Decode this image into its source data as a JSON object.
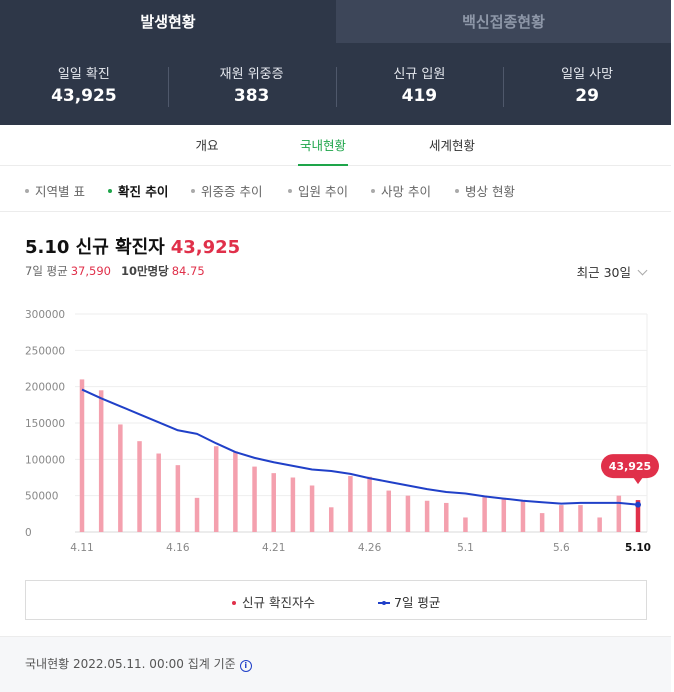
{
  "top_tabs": [
    "발생현황",
    "백신접종현황"
  ],
  "stats": [
    {
      "label": "일일 확진",
      "value": "43,925"
    },
    {
      "label": "재원 위중증",
      "value": "383"
    },
    {
      "label": "신규 입원",
      "value": "419"
    },
    {
      "label": "일일 사망",
      "value": "29"
    }
  ],
  "subtabs": [
    "개요",
    "국내현황",
    "세계현황"
  ],
  "filters": [
    "지역별 표",
    "확진 추이",
    "위중증 추이",
    "입원 추이",
    "사망 추이",
    "병상 현황"
  ],
  "headline": {
    "title": "5.10 신규 확진자",
    "value": "43,925"
  },
  "subline": {
    "avg_label": "7일 평균",
    "avg_value": "37,590",
    "per_label": "10만명당",
    "per_value": "84.75"
  },
  "range": {
    "label": "최근 30일"
  },
  "legend": {
    "bars": "신규 확진자수",
    "line": "7일 평균"
  },
  "footer": {
    "text": "국내현황 2022.05.11. 00:00 집계 기준",
    "icon": "info-icon"
  },
  "colors": {
    "bar": "#f4a0ae",
    "bar_last": "#e0304a",
    "line": "#2040c8",
    "accent": "#1ea54a"
  },
  "chart_data": {
    "type": "bar",
    "categories": [
      "4.11",
      "4.12",
      "4.13",
      "4.14",
      "4.15",
      "4.16",
      "4.17",
      "4.18",
      "4.19",
      "4.20",
      "4.21",
      "4.22",
      "4.23",
      "4.24",
      "4.25",
      "4.26",
      "4.27",
      "4.28",
      "4.29",
      "4.30",
      "5.1",
      "5.2",
      "5.3",
      "5.4",
      "5.5",
      "5.6",
      "5.7",
      "5.8",
      "5.9",
      "5.10"
    ],
    "tick_labels": [
      "4.11",
      "4.16",
      "4.21",
      "4.26",
      "5.1",
      "5.6",
      "5.10"
    ],
    "series": [
      {
        "name": "신규 확진자수",
        "type": "bar",
        "values": [
          210000,
          195000,
          148000,
          125000,
          108000,
          92000,
          47000,
          118000,
          111000,
          90000,
          81000,
          75000,
          64000,
          34000,
          77000,
          76000,
          57000,
          50000,
          43000,
          40000,
          20000,
          48000,
          47000,
          42000,
          26000,
          37000,
          37000,
          20000,
          50000,
          43925
        ]
      },
      {
        "name": "7일 평균",
        "type": "line",
        "values": [
          196000,
          184000,
          173000,
          162000,
          151000,
          140000,
          135000,
          122000,
          110000,
          102000,
          96000,
          91000,
          86000,
          84000,
          80000,
          74000,
          69000,
          64000,
          59000,
          55000,
          53000,
          49000,
          46000,
          43000,
          41000,
          39000,
          40000,
          40000,
          40000,
          37590
        ]
      }
    ],
    "yticks": [
      0,
      50000,
      100000,
      150000,
      200000,
      250000,
      300000
    ],
    "ylim": [
      0,
      300000
    ],
    "highlight": {
      "category": "5.10",
      "label": "43,925"
    },
    "legend_position": "bottom"
  }
}
